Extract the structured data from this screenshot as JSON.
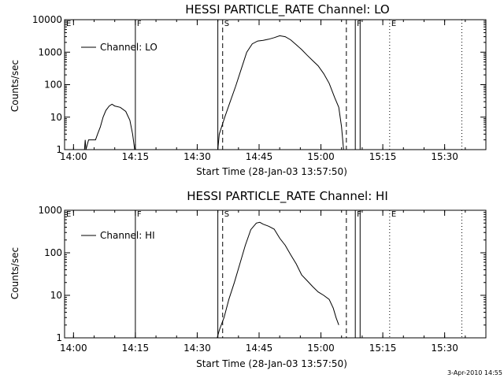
{
  "timestamp": "3-Apr-2010 14:55",
  "chart_data": [
    {
      "type": "line",
      "title": "HESSI PARTICLE_RATE Channel: LO",
      "xlabel": "Start Time (28-Jan-03 13:57:50)",
      "ylabel": "Counts/sec",
      "yscale": "log",
      "xlim": [
        "13:57:50",
        "15:40:00"
      ],
      "ylim": [
        1,
        10000
      ],
      "x_ticks": [
        "14:00",
        "14:15",
        "14:30",
        "14:45",
        "15:00",
        "15:15",
        "15:30"
      ],
      "y_ticks": [
        "1",
        "10",
        "100",
        "1000",
        "10000"
      ],
      "legend": {
        "position": "top-left",
        "entries": [
          "Channel: LO"
        ]
      },
      "markers": [
        {
          "label": "E",
          "time": "13:57:50",
          "style": "solid"
        },
        {
          "label": "F",
          "time": "14:15:00",
          "style": "solid"
        },
        {
          "label": "",
          "time": "14:35:00",
          "style": "solid"
        },
        {
          "label": "S",
          "time": "14:36:10",
          "style": "dashed"
        },
        {
          "label": "",
          "time": "15:06:10",
          "style": "dashed"
        },
        {
          "label": "F",
          "time": "15:08:20",
          "style": "solid"
        },
        {
          "label": "",
          "time": "15:09:30",
          "style": "solid"
        },
        {
          "label": "E",
          "time": "15:16:40",
          "style": "dotted"
        },
        {
          "label": "",
          "time": "15:34:10",
          "style": "dotted"
        }
      ],
      "series": [
        {
          "name": "Channel: LO",
          "segments": [
            [
              [
                "14:02:40",
                1
              ],
              [
                "14:02:50",
                2
              ],
              [
                "14:03:00",
                1
              ],
              [
                "14:03:40",
                2
              ],
              [
                "14:05:20",
                2
              ],
              [
                "14:05:50",
                3
              ],
              [
                "14:06:30",
                5
              ],
              [
                "14:07:10",
                10
              ],
              [
                "14:07:50",
                16
              ],
              [
                "14:08:40",
                22
              ],
              [
                "14:09:20",
                25
              ],
              [
                "14:10:00",
                22
              ],
              [
                "14:11:20",
                20
              ],
              [
                "14:12:40",
                15
              ],
              [
                "14:13:40",
                8
              ],
              [
                "14:14:20",
                3
              ],
              [
                "14:14:50",
                1
              ]
            ],
            [
              [
                "14:35:00",
                1
              ],
              [
                "14:35:20",
                3
              ],
              [
                "14:36:40",
                10
              ],
              [
                "14:38:00",
                30
              ],
              [
                "14:39:20",
                90
              ],
              [
                "14:40:40",
                300
              ],
              [
                "14:42:00",
                1000
              ],
              [
                "14:43:20",
                1800
              ],
              [
                "14:44:40",
                2200
              ],
              [
                "14:46:00",
                2300
              ],
              [
                "14:47:20",
                2500
              ],
              [
                "14:48:40",
                2800
              ],
              [
                "14:50:00",
                3200
              ],
              [
                "14:51:20",
                3000
              ],
              [
                "14:52:40",
                2400
              ],
              [
                "14:54:00",
                1700
              ],
              [
                "14:55:20",
                1200
              ],
              [
                "14:56:40",
                800
              ],
              [
                "14:58:00",
                550
              ],
              [
                "14:59:20",
                380
              ],
              [
                "15:00:40",
                220
              ],
              [
                "15:02:00",
                110
              ],
              [
                "15:03:20",
                40
              ],
              [
                "15:04:20",
                20
              ],
              [
                "15:05:00",
                5
              ],
              [
                "15:05:30",
                1
              ]
            ]
          ]
        }
      ]
    },
    {
      "type": "line",
      "title": "HESSI PARTICLE_RATE Channel: HI",
      "xlabel": "Start Time (28-Jan-03 13:57:50)",
      "ylabel": "Counts/sec",
      "yscale": "log",
      "xlim": [
        "13:57:50",
        "15:40:00"
      ],
      "ylim": [
        1,
        1000
      ],
      "x_ticks": [
        "14:00",
        "14:15",
        "14:30",
        "14:45",
        "15:00",
        "15:15",
        "15:30"
      ],
      "y_ticks": [
        "1",
        "10",
        "100",
        "1000"
      ],
      "legend": {
        "position": "top-left",
        "entries": [
          "Channel: HI"
        ]
      },
      "markers": [
        {
          "label": "E",
          "time": "13:57:50",
          "style": "solid"
        },
        {
          "label": "F",
          "time": "14:15:00",
          "style": "solid"
        },
        {
          "label": "",
          "time": "14:35:00",
          "style": "solid"
        },
        {
          "label": "S",
          "time": "14:36:10",
          "style": "dashed"
        },
        {
          "label": "",
          "time": "15:06:10",
          "style": "dashed"
        },
        {
          "label": "F",
          "time": "15:08:20",
          "style": "solid"
        },
        {
          "label": "",
          "time": "15:09:30",
          "style": "solid"
        },
        {
          "label": "E",
          "time": "15:16:40",
          "style": "dotted"
        },
        {
          "label": "",
          "time": "15:34:10",
          "style": "dotted"
        }
      ],
      "series": [
        {
          "name": "Channel: HI",
          "segments": [
            [
              [
                "14:34:50",
                1
              ],
              [
                "14:35:20",
                1.5
              ],
              [
                "14:36:30",
                3
              ],
              [
                "14:37:40",
                8
              ],
              [
                "14:39:00",
                20
              ],
              [
                "14:40:20",
                55
              ],
              [
                "14:41:40",
                150
              ],
              [
                "14:43:00",
                350
              ],
              [
                "14:44:20",
                500
              ],
              [
                "14:45:10",
                520
              ],
              [
                "14:46:00",
                470
              ],
              [
                "14:47:20",
                420
              ],
              [
                "14:48:40",
                360
              ],
              [
                "14:50:00",
                220
              ],
              [
                "14:51:20",
                150
              ],
              [
                "14:52:40",
                90
              ],
              [
                "14:54:00",
                55
              ],
              [
                "14:55:20",
                30
              ],
              [
                "14:56:40",
                22
              ],
              [
                "14:58:00",
                16
              ],
              [
                "14:59:20",
                12
              ],
              [
                "15:00:40",
                10
              ],
              [
                "15:02:00",
                8
              ],
              [
                "15:03:00",
                5
              ],
              [
                "15:03:40",
                3
              ],
              [
                "15:04:20",
                2
              ]
            ]
          ]
        }
      ]
    }
  ]
}
